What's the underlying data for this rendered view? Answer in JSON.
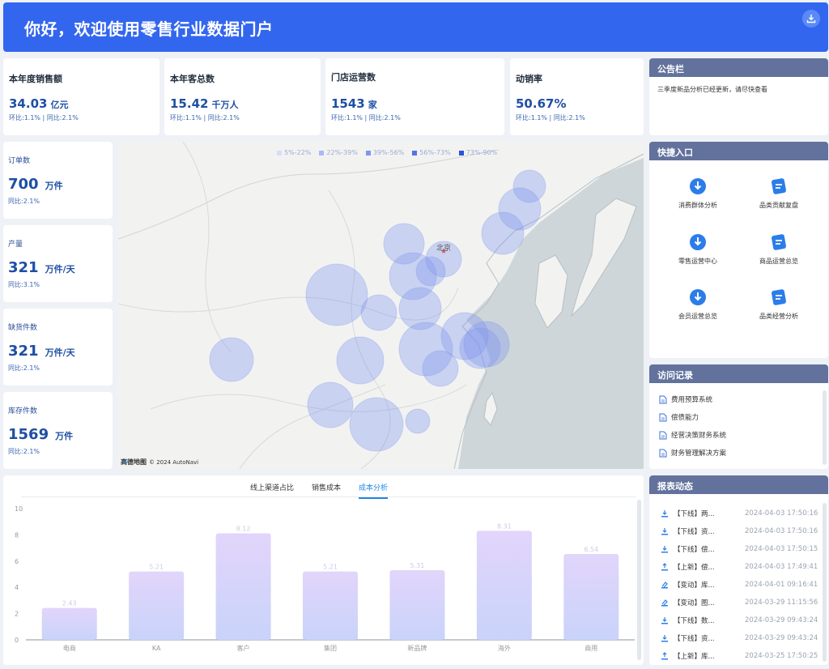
{
  "header": {
    "title": "你好，欢迎使用零售行业数据门户"
  },
  "kpis": [
    {
      "label": "本年度销售额",
      "value": "34.03",
      "unit": "亿元",
      "sub": "环比:1.1% | 同比:2.1%"
    },
    {
      "label": "本年客总数",
      "value": "15.42",
      "unit": "千万人",
      "sub": "环比:1.1% | 同比:2.1%"
    },
    {
      "label": "门店运营数",
      "value": "1543",
      "unit": "家",
      "sub": "环比:1.1% | 同比:2.1%"
    },
    {
      "label": "动销率",
      "value": "50.67%",
      "unit": "",
      "sub": "环比:1.1% | 同比:2.1%"
    }
  ],
  "left_kpis": [
    {
      "label": "订单数",
      "value": "700",
      "unit": "万件",
      "sub": "同比:2.1%"
    },
    {
      "label": "产量",
      "value": "321",
      "unit": "万件/天",
      "sub": "同比:3.1%"
    },
    {
      "label": "缺货件数",
      "value": "321",
      "unit": "万件/天",
      "sub": "同比:2.1%"
    },
    {
      "label": "库存件数",
      "value": "1569",
      "unit": "万件",
      "sub": "同比:2.1%"
    }
  ],
  "map": {
    "city_label": "北京",
    "legend": [
      "5%-22%",
      "22%-39%",
      "39%-56%",
      "56%-73%",
      "73%-90%"
    ],
    "legend_colors": [
      "#d6ddfb",
      "#aab9f5",
      "#7f95ee",
      "#5572e6",
      "#2e50de"
    ],
    "logo": "高德地图",
    "copyright": "© 2024 AutoNavi"
  },
  "notice": {
    "title": "公告栏",
    "text": "三季度新品分析已经更新，请尽快查看"
  },
  "quick": {
    "title": "快捷入口",
    "items": [
      "消费群体分析",
      "品类贡献复盘",
      "零售运营中心",
      "商品运营总览",
      "会员运营总览",
      "品类经营分析"
    ]
  },
  "visits": {
    "title": "访问记录",
    "items": [
      "费用预算系统",
      "偿债能力",
      "经营决策财务系统",
      "财务管理解决方案"
    ]
  },
  "reports": {
    "title": "报表动态",
    "items": [
      {
        "title": "【下线】两...",
        "time": "2024-04-03 17:50:16",
        "icon": "download-icon"
      },
      {
        "title": "【下线】资...",
        "time": "2024-04-03 17:50:16",
        "icon": "download-icon"
      },
      {
        "title": "【下线】偿...",
        "time": "2024-04-03 17:50:15",
        "icon": "download-icon"
      },
      {
        "title": "【上新】偿...",
        "time": "2024-04-03 17:49:41",
        "icon": "upload-icon"
      },
      {
        "title": "【变动】库...",
        "time": "2024-04-01 09:16:41",
        "icon": "change-icon"
      },
      {
        "title": "【变动】图...",
        "time": "2024-03-29 11:15:56",
        "icon": "change-icon"
      },
      {
        "title": "【下线】数...",
        "time": "2024-03-29 09:43:24",
        "icon": "download-icon"
      },
      {
        "title": "【下线】资...",
        "time": "2024-03-29 09:43:24",
        "icon": "download-icon"
      },
      {
        "title": "【上新】库...",
        "time": "2024-03-25 17:50:25",
        "icon": "upload-icon"
      }
    ]
  },
  "tabs": {
    "items": [
      "线上渠道占比",
      "销售成本",
      "成本分析"
    ],
    "active": 2
  },
  "chart_data": {
    "type": "bar",
    "categories": [
      "电商",
      "KA",
      "客户",
      "集团",
      "新品牌",
      "海外",
      "商用"
    ],
    "values": [
      2.43,
      5.21,
      8.12,
      5.21,
      5.31,
      8.31,
      6.54
    ],
    "ylim": [
      0,
      10
    ],
    "yticks": [
      0,
      2,
      4,
      6,
      8,
      10
    ],
    "bar_color_top": "#e2d5fb",
    "bar_color_bottom": "#c9d3fa",
    "label_color": "#c8cdea"
  }
}
